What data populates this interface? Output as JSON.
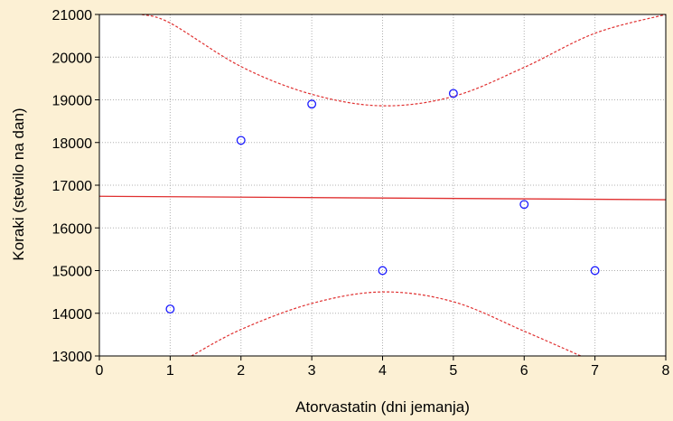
{
  "chart_data": {
    "type": "scatter",
    "title": "",
    "xlabel": "Atorvastatin (dni jemanja)",
    "ylabel": "Koraki (stevilo na dan)",
    "xlim": [
      0,
      8
    ],
    "ylim": [
      13000,
      21000
    ],
    "x_ticks": [
      "0",
      "1",
      "2",
      "3",
      "4",
      "5",
      "6",
      "7",
      "8"
    ],
    "y_ticks": [
      "13000",
      "14000",
      "15000",
      "16000",
      "17000",
      "18000",
      "19000",
      "20000",
      "21000"
    ],
    "grid": true,
    "legend": "none",
    "points": [
      {
        "x": 1,
        "y": 14100
      },
      {
        "x": 2,
        "y": 18050
      },
      {
        "x": 3,
        "y": 18900
      },
      {
        "x": 4,
        "y": 15000
      },
      {
        "x": 5,
        "y": 19150
      },
      {
        "x": 6,
        "y": 16550
      },
      {
        "x": 7,
        "y": 15000
      }
    ],
    "regression_line": {
      "x": [
        0,
        8
      ],
      "y": [
        16740,
        16660
      ]
    },
    "confidence_band_upper": {
      "x": [
        0.6,
        1,
        2,
        3,
        4,
        5,
        6,
        7,
        8
      ],
      "y": [
        21000,
        20800,
        19780,
        19130,
        18860,
        19080,
        19760,
        20560,
        21000
      ]
    },
    "confidence_band_lower": {
      "x": [
        1.3,
        2,
        3,
        4,
        5,
        6,
        6.8
      ],
      "y": [
        13000,
        13620,
        14230,
        14500,
        14270,
        13580,
        13000
      ]
    },
    "colors": {
      "background": "#fcf0d4",
      "plot_background": "#ffffff",
      "points": "#1a1aff",
      "fit_line": "#e03030",
      "grid": "#b0b0b0"
    }
  }
}
